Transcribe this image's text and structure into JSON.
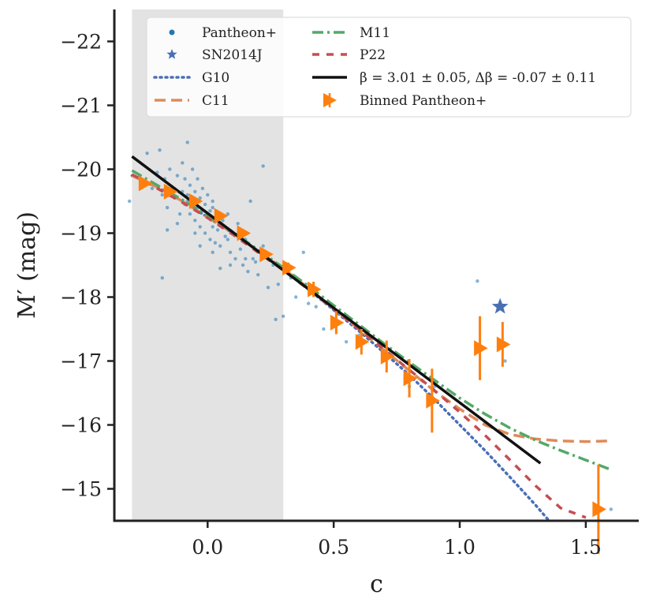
{
  "chart_data": {
    "type": "scatter",
    "xlabel": "c",
    "ylabel": "M′ (mag)",
    "xlim": [
      -0.37,
      1.71
    ],
    "ylim": [
      -14.5,
      -22.5
    ],
    "y_inverted": true,
    "xticks": [
      0.0,
      0.5,
      1.0,
      1.5
    ],
    "xtick_labels": [
      "0.0",
      "0.5",
      "1.0",
      "1.5"
    ],
    "yticks": [
      -15,
      -16,
      -17,
      -18,
      -19,
      -20,
      -21,
      -22
    ],
    "ytick_labels": [
      "−15",
      "−16",
      "−17",
      "−18",
      "−19",
      "−20",
      "−21",
      "−22"
    ],
    "shaded_region": {
      "x_from": -0.3,
      "x_to": 0.3,
      "color": "#e3e3e3"
    },
    "legend": {
      "placement": "top",
      "entries": [
        {
          "label": "Pantheon+",
          "marker": "dot",
          "color": "#1f77b4"
        },
        {
          "label": "SN2014J",
          "marker": "star",
          "color": "#4a6fb5"
        },
        {
          "label": "G10",
          "style": "dotted",
          "color": "#4a6fb5"
        },
        {
          "label": "C11",
          "style": "dashed",
          "color": "#e08a5a"
        },
        {
          "label": "M11",
          "style": "dashdot",
          "color": "#55a868"
        },
        {
          "label": "P22",
          "style": "dashed-short",
          "color": "#c44e52"
        },
        {
          "label": "β = 3.01 ± 0.05, Δβ = -0.07 ± 0.11",
          "style": "solid",
          "color": "#111111"
        },
        {
          "label": "Binned Pantheon+",
          "marker": "triangle-right-errorbar",
          "color": "#ff7f0e"
        }
      ]
    },
    "series": [
      {
        "name": "G10",
        "style": "dotted",
        "color": "#4a6fb5",
        "x": [
          -0.3,
          -0.2,
          -0.1,
          0.0,
          0.1,
          0.2,
          0.3,
          0.4,
          0.5,
          0.6,
          0.7,
          0.8,
          0.9,
          1.0,
          1.1,
          1.2,
          1.3,
          1.35
        ],
        "y": [
          -19.9,
          -19.72,
          -19.5,
          -19.25,
          -19.0,
          -18.72,
          -18.43,
          -18.12,
          -17.8,
          -17.47,
          -17.13,
          -16.78,
          -16.4,
          -16.0,
          -15.6,
          -15.18,
          -14.75,
          -14.52
        ]
      },
      {
        "name": "C11",
        "style": "dashed",
        "color": "#e08a5a",
        "x": [
          -0.3,
          -0.2,
          -0.1,
          0.0,
          0.1,
          0.2,
          0.3,
          0.4,
          0.5,
          0.6,
          0.7,
          0.8,
          0.9,
          1.0,
          1.1,
          1.2,
          1.3,
          1.4,
          1.5,
          1.6
        ],
        "y": [
          -19.9,
          -19.72,
          -19.5,
          -19.25,
          -19.0,
          -18.72,
          -18.45,
          -18.14,
          -17.82,
          -17.5,
          -17.17,
          -16.85,
          -16.53,
          -16.25,
          -16.0,
          -15.85,
          -15.78,
          -15.75,
          -15.74,
          -15.75
        ]
      },
      {
        "name": "M11",
        "style": "dashdot",
        "color": "#55a868",
        "x": [
          -0.3,
          -0.2,
          -0.1,
          0.0,
          0.1,
          0.2,
          0.3,
          0.4,
          0.5,
          0.6,
          0.7,
          0.8,
          0.9,
          1.0,
          1.1,
          1.2,
          1.3,
          1.4,
          1.5,
          1.6
        ],
        "y": [
          -19.98,
          -19.75,
          -19.52,
          -19.27,
          -19.02,
          -18.74,
          -18.46,
          -18.17,
          -17.87,
          -17.57,
          -17.27,
          -16.98,
          -16.7,
          -16.42,
          -16.17,
          -15.95,
          -15.76,
          -15.6,
          -15.45,
          -15.3
        ]
      },
      {
        "name": "P22",
        "style": "dashed-short",
        "color": "#c44e52",
        "x": [
          -0.3,
          -0.2,
          -0.1,
          0.0,
          0.1,
          0.2,
          0.3,
          0.4,
          0.5,
          0.6,
          0.7,
          0.8,
          0.9,
          1.0,
          1.1,
          1.2,
          1.3,
          1.4,
          1.5
        ],
        "y": [
          -19.92,
          -19.7,
          -19.48,
          -19.24,
          -18.98,
          -18.7,
          -18.42,
          -18.12,
          -17.81,
          -17.5,
          -17.18,
          -16.86,
          -16.54,
          -16.2,
          -15.84,
          -15.45,
          -15.05,
          -14.7,
          -14.55
        ]
      },
      {
        "name": "β = 3.01 ± 0.05, Δβ = -0.07 ± 0.11",
        "style": "solid",
        "color": "#111111",
        "x": [
          -0.3,
          1.32
        ],
        "y": [
          -20.2,
          -15.4
        ]
      }
    ],
    "binned": {
      "name": "Binned Pantheon+",
      "color": "#ff7f0e",
      "x": [
        -0.25,
        -0.15,
        -0.05,
        0.05,
        0.14,
        0.23,
        0.32,
        0.42,
        0.51,
        0.61,
        0.71,
        0.8,
        0.89,
        1.08,
        1.17,
        1.55
      ],
      "y": [
        -19.78,
        -19.65,
        -19.5,
        -19.27,
        -19.0,
        -18.67,
        -18.46,
        -18.12,
        -17.6,
        -17.3,
        -17.07,
        -16.73,
        -16.38,
        -17.2,
        -17.26,
        -14.68
      ],
      "yerr": [
        0.05,
        0.04,
        0.03,
        0.03,
        0.04,
        0.05,
        0.08,
        0.12,
        0.18,
        0.2,
        0.25,
        0.3,
        0.5,
        0.5,
        0.35,
        0.7
      ]
    },
    "sn2014j": {
      "name": "SN2014J",
      "x": 1.16,
      "y": -17.85,
      "color": "#4a6fb5"
    },
    "pantheon_points": {
      "name": "Pantheon+",
      "color": "#1f77b4",
      "x": [
        -0.31,
        -0.27,
        -0.24,
        -0.22,
        -0.2,
        -0.19,
        -0.18,
        -0.17,
        -0.16,
        -0.15,
        -0.14,
        -0.13,
        -0.12,
        -0.11,
        -0.1,
        -0.1,
        -0.09,
        -0.09,
        -0.08,
        -0.08,
        -0.07,
        -0.07,
        -0.06,
        -0.06,
        -0.05,
        -0.05,
        -0.04,
        -0.04,
        -0.03,
        -0.03,
        -0.02,
        -0.02,
        -0.01,
        -0.01,
        0.0,
        0.0,
        0.01,
        0.01,
        0.02,
        0.02,
        0.03,
        0.03,
        0.04,
        0.05,
        0.06,
        0.07,
        0.08,
        0.09,
        0.1,
        0.11,
        0.12,
        0.13,
        0.14,
        0.15,
        0.16,
        0.17,
        0.18,
        0.2,
        0.22,
        0.24,
        0.26,
        0.28,
        0.3,
        0.33,
        0.35,
        0.38,
        0.4,
        0.43,
        0.46,
        0.5,
        0.55,
        0.6,
        0.7,
        0.8,
        0.9,
        1.07,
        1.18,
        -0.18,
        -0.12,
        -0.05,
        0.02,
        0.08,
        0.15,
        0.22,
        0.02,
        -0.08,
        0.12,
        -0.16,
        0.05,
        0.19,
        0.27,
        -0.03,
        0.09,
        1.6
      ],
      "y": [
        -19.5,
        -19.9,
        -20.25,
        -19.7,
        -19.95,
        -20.3,
        -19.6,
        -19.85,
        -19.4,
        -20.0,
        -19.7,
        -19.55,
        -19.9,
        -19.3,
        -20.1,
        -19.65,
        -19.45,
        -19.85,
        -20.42,
        -19.6,
        -19.3,
        -19.75,
        -19.5,
        -20.0,
        -19.2,
        -19.65,
        -19.4,
        -19.85,
        -19.1,
        -19.55,
        -19.35,
        -19.7,
        -19.0,
        -19.45,
        -19.25,
        -19.6,
        -18.9,
        -19.35,
        -19.1,
        -19.5,
        -18.85,
        -19.25,
        -19.05,
        -18.8,
        -19.2,
        -18.95,
        -19.3,
        -18.7,
        -19.0,
        -18.6,
        -19.15,
        -18.75,
        -18.5,
        -18.9,
        -18.4,
        -19.5,
        -18.6,
        -18.35,
        -18.8,
        -18.15,
        -18.5,
        -18.2,
        -17.7,
        -18.3,
        -18.0,
        -18.7,
        -17.9,
        -17.85,
        -17.5,
        -17.8,
        -17.3,
        -17.4,
        -17.1,
        -16.6,
        -16.6,
        -18.25,
        -17.0,
        -18.3,
        -19.15,
        -19.0,
        -18.7,
        -18.9,
        -18.6,
        -20.05,
        -19.4,
        -19.5,
        -18.95,
        -19.05,
        -18.45,
        -18.55,
        -17.65,
        -18.8,
        -18.5,
        -14.68
      ]
    }
  }
}
